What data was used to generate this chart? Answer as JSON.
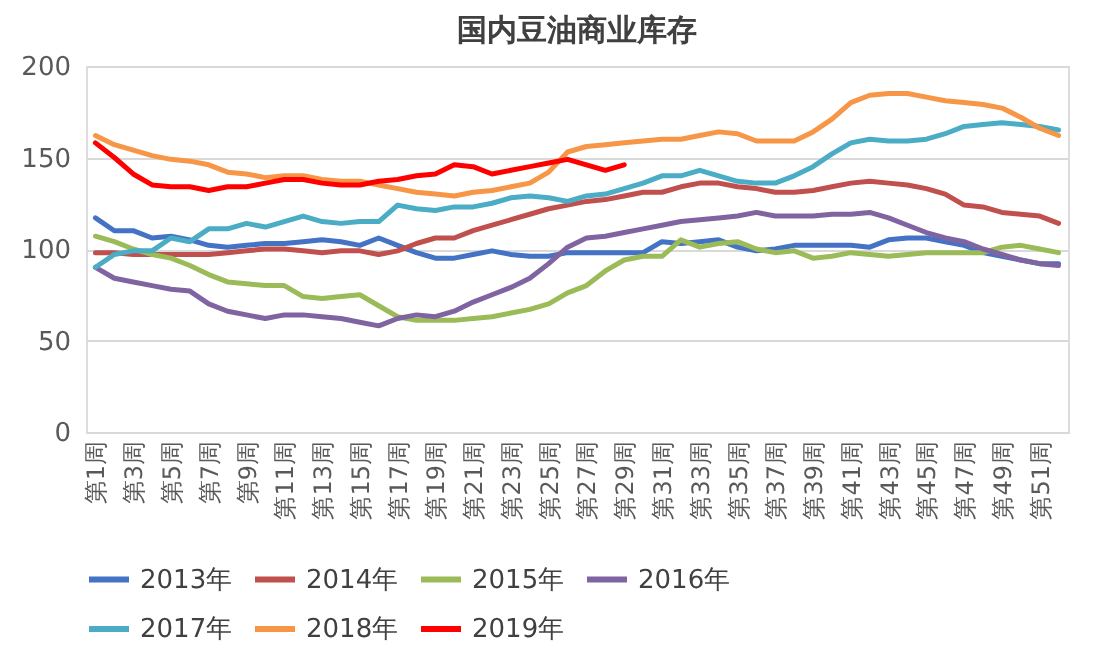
{
  "chart_data": {
    "type": "line",
    "title": "国内豆油商业库存",
    "categories": [
      "第1周",
      null,
      "第3周",
      null,
      "第5周",
      null,
      "第7周",
      null,
      "第9周",
      null,
      "第11周",
      null,
      "第13周",
      null,
      "第15周",
      null,
      "第17周",
      null,
      "第19周",
      null,
      "第21周",
      null,
      "第23周",
      null,
      "第25周",
      null,
      "第27周",
      null,
      "第29周",
      null,
      "第31周",
      null,
      "第33周",
      null,
      "第35周",
      null,
      "第37周",
      null,
      "第39周",
      null,
      "第41周",
      null,
      "第43周",
      null,
      "第45周",
      null,
      "第47周",
      null,
      "第49周",
      null,
      "第51周",
      null
    ],
    "series": [
      {
        "name": "2013年",
        "color": "#4472c4",
        "values": [
          117,
          110,
          110,
          106,
          107,
          105,
          102,
          101,
          102,
          103,
          103,
          104,
          105,
          104,
          102,
          106,
          102,
          98,
          95,
          95,
          97,
          99,
          97,
          96,
          96,
          98,
          98,
          98,
          98,
          98,
          104,
          103,
          104,
          105,
          101,
          99,
          100,
          102,
          102,
          102,
          102,
          101,
          105,
          106,
          106,
          104,
          102,
          98,
          96,
          94,
          92,
          92
        ]
      },
      {
        "name": "2014年",
        "color": "#c0504d",
        "values": [
          98,
          98,
          97,
          97,
          97,
          97,
          97,
          98,
          99,
          100,
          100,
          99,
          98,
          99,
          99,
          97,
          99,
          103,
          106,
          106,
          110,
          113,
          116,
          119,
          122,
          124,
          126,
          127,
          129,
          131,
          131,
          134,
          136,
          136,
          134,
          133,
          131,
          131,
          132,
          134,
          136,
          137,
          136,
          135,
          133,
          130,
          124,
          123,
          120,
          119,
          118,
          114
        ]
      },
      {
        "name": "2015年",
        "color": "#9bbb59",
        "values": [
          107,
          104,
          100,
          97,
          95,
          91,
          86,
          82,
          81,
          80,
          80,
          74,
          73,
          74,
          75,
          69,
          63,
          61,
          61,
          61,
          62,
          63,
          65,
          67,
          70,
          76,
          80,
          88,
          94,
          96,
          96,
          105,
          101,
          103,
          104,
          100,
          98,
          99,
          95,
          96,
          98,
          97,
          96,
          97,
          98,
          98,
          98,
          98,
          101,
          102,
          100,
          98
        ]
      },
      {
        "name": "2016年",
        "color": "#8064a2",
        "values": [
          90,
          84,
          82,
          80,
          78,
          77,
          70,
          66,
          64,
          62,
          64,
          64,
          63,
          62,
          60,
          58,
          62,
          64,
          63,
          66,
          71,
          75,
          79,
          84,
          92,
          101,
          106,
          107,
          109,
          111,
          113,
          115,
          116,
          117,
          118,
          120,
          118,
          118,
          118,
          119,
          119,
          120,
          117,
          113,
          109,
          106,
          104,
          100,
          97,
          94,
          92,
          91
        ]
      },
      {
        "name": "2017年",
        "color": "#4bacc6",
        "values": [
          90,
          97,
          99,
          99,
          106,
          104,
          111,
          111,
          114,
          112,
          115,
          118,
          115,
          114,
          115,
          115,
          124,
          122,
          121,
          123,
          123,
          125,
          128,
          129,
          128,
          126,
          129,
          130,
          133,
          136,
          140,
          140,
          143,
          140,
          137,
          136,
          136,
          140,
          145,
          152,
          158,
          160,
          159,
          159,
          160,
          163,
          167,
          168,
          169,
          168,
          167,
          165
        ]
      },
      {
        "name": "2018年",
        "color": "#f79646",
        "values": [
          162,
          157,
          154,
          151,
          149,
          148,
          146,
          142,
          141,
          139,
          140,
          140,
          138,
          137,
          137,
          135,
          133,
          131,
          130,
          129,
          131,
          132,
          134,
          136,
          142,
          153,
          156,
          157,
          158,
          159,
          160,
          160,
          162,
          164,
          163,
          159,
          159,
          159,
          164,
          171,
          180,
          184,
          185,
          185,
          183,
          181,
          180,
          179,
          177,
          172,
          166,
          162
        ]
      },
      {
        "name": "2019年",
        "color": "#ff0000",
        "values": [
          158,
          150,
          141,
          135,
          134,
          134,
          132,
          134,
          134,
          136,
          138,
          138,
          136,
          135,
          135,
          137,
          138,
          140,
          141,
          146,
          145,
          141,
          143,
          145,
          147,
          149,
          146,
          143,
          146,
          null,
          null,
          null,
          null,
          null,
          null,
          null,
          null,
          null,
          null,
          null,
          null,
          null,
          null,
          null,
          null,
          null,
          null,
          null,
          null,
          null,
          null,
          null
        ]
      }
    ],
    "ylim": [
      0,
      200
    ],
    "yticks": [
      0,
      50,
      100,
      150,
      200
    ],
    "grid": "y",
    "legend": "bottom",
    "marker": "none",
    "line_style": "solid"
  }
}
